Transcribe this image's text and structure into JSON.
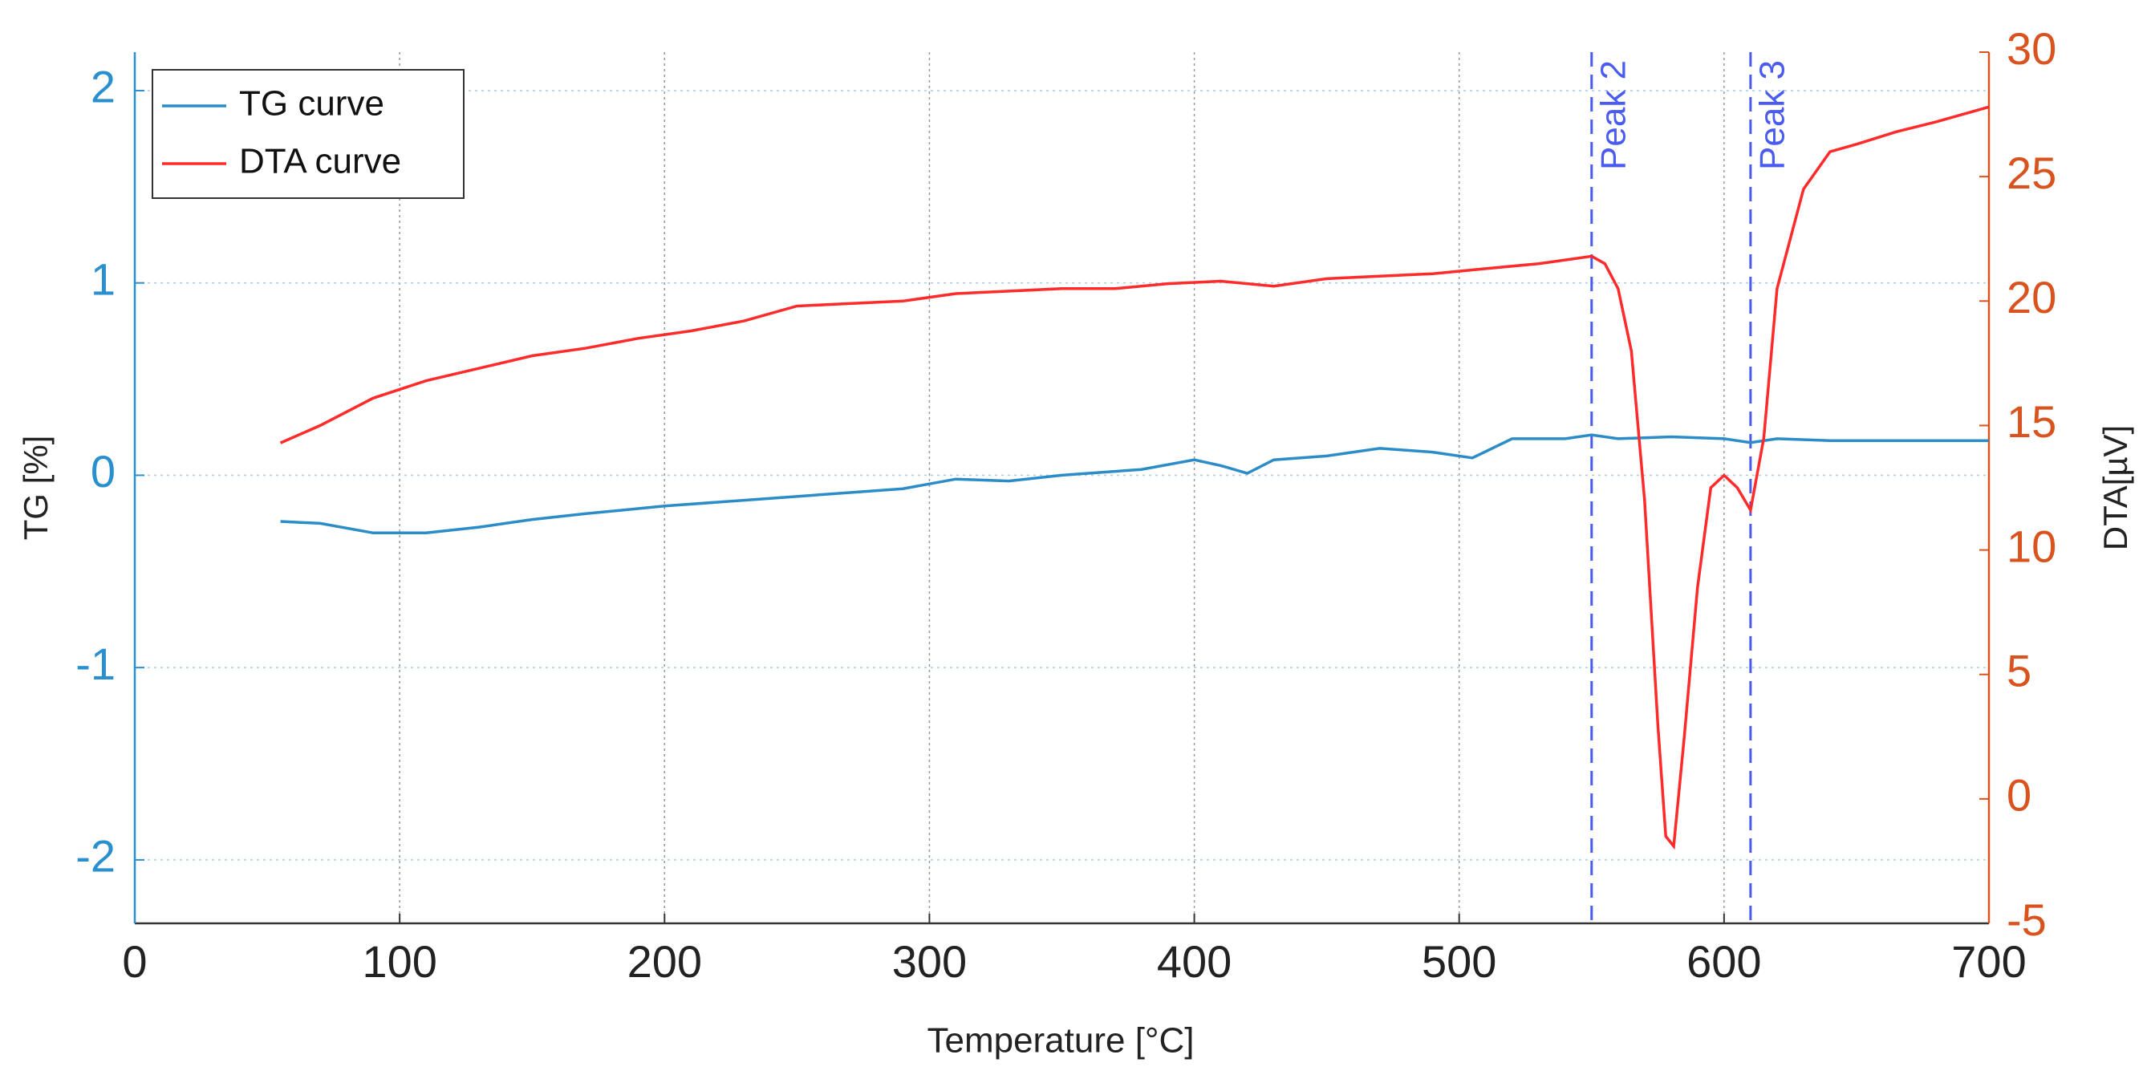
{
  "chart_data": {
    "type": "line",
    "xlabel": "Temperature [°C]",
    "ylabel": "TG [%]",
    "y2label": "DTA[µV]",
    "xlim": [
      0,
      700
    ],
    "xticks": [
      0,
      100,
      200,
      300,
      400,
      500,
      600,
      700
    ],
    "ylim": [
      -2.33,
      2.2
    ],
    "yticks": [
      -2,
      -1,
      0,
      1,
      2
    ],
    "y2lim": [
      -5,
      30
    ],
    "y2ticks": [
      -5,
      0,
      5,
      10,
      15,
      20,
      25,
      30
    ],
    "grid": true,
    "legend": "upper left",
    "ycolor": "#2a8fcf",
    "y2color": "#d9531e",
    "series": [
      {
        "name": "TG curve",
        "color": "#2b8cc8",
        "axis": "y",
        "x": [
          55,
          70,
          90,
          110,
          130,
          150,
          170,
          200,
          230,
          260,
          290,
          310,
          330,
          350,
          380,
          400,
          410,
          420,
          430,
          450,
          470,
          490,
          505,
          520,
          540,
          550,
          560,
          580,
          600,
          610,
          620,
          640,
          670,
          700
        ],
        "values": [
          -0.24,
          -0.25,
          -0.3,
          -0.3,
          -0.27,
          -0.23,
          -0.2,
          -0.16,
          -0.13,
          -0.1,
          -0.07,
          -0.02,
          -0.03,
          0.0,
          0.03,
          0.08,
          0.05,
          0.01,
          0.08,
          0.1,
          0.14,
          0.12,
          0.09,
          0.19,
          0.19,
          0.21,
          0.19,
          0.2,
          0.19,
          0.17,
          0.19,
          0.18,
          0.18,
          0.18
        ]
      },
      {
        "name": "DTA curve",
        "color": "#ff2a2a",
        "axis": "y2",
        "x": [
          55,
          70,
          90,
          110,
          130,
          150,
          170,
          190,
          210,
          230,
          250,
          270,
          290,
          310,
          330,
          350,
          370,
          390,
          410,
          430,
          450,
          470,
          490,
          510,
          530,
          550,
          555,
          560,
          565,
          570,
          575,
          578,
          581,
          585,
          590,
          595,
          600,
          605,
          610,
          615,
          620,
          630,
          640,
          650,
          665,
          680,
          700
        ],
        "values": [
          14.3,
          15.0,
          16.1,
          16.8,
          17.3,
          17.8,
          18.1,
          18.5,
          18.8,
          19.2,
          19.8,
          19.9,
          20.0,
          20.3,
          20.4,
          20.5,
          20.5,
          20.7,
          20.8,
          20.6,
          20.9,
          21.0,
          21.1,
          21.3,
          21.5,
          21.8,
          21.5,
          20.5,
          18.0,
          12.0,
          3.0,
          -1.5,
          -1.9,
          2.5,
          8.5,
          12.5,
          13.0,
          12.5,
          11.6,
          14.5,
          20.5,
          24.5,
          26.0,
          26.3,
          26.8,
          27.2,
          27.8
        ]
      }
    ],
    "annotations": [
      {
        "x": 550,
        "text": "Peak 2"
      },
      {
        "x": 610,
        "text": "Peak 3"
      }
    ],
    "annotation_color": "#4a5cf0"
  }
}
